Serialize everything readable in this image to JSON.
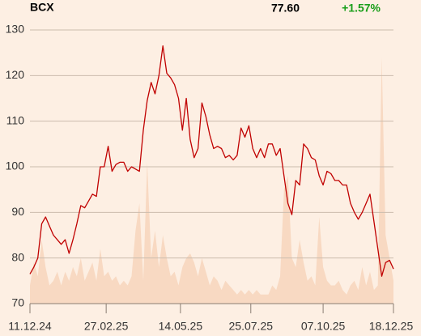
{
  "header": {
    "symbol": "BCX",
    "price": "77.60",
    "change": "+1.57%"
  },
  "chart_data": {
    "type": "line",
    "x": [
      "11.12.24",
      "15.12.24",
      "19.12.24",
      "23.12.24",
      "27.12.24",
      "31.12.24",
      "04.01.25",
      "08.01.25",
      "12.01.25",
      "16.01.25",
      "20.01.25",
      "24.01.25",
      "28.01.25",
      "01.02.25",
      "05.02.25",
      "09.02.25",
      "13.02.25",
      "17.02.25",
      "21.02.25",
      "25.02.25",
      "01.03.25",
      "05.03.25",
      "09.03.25",
      "13.03.25",
      "17.03.25",
      "21.03.25",
      "25.03.25",
      "29.03.25",
      "02.04.25",
      "06.04.25",
      "10.04.25",
      "14.04.25",
      "18.04.25",
      "22.04.25",
      "26.04.25",
      "30.04.25",
      "04.05.25",
      "08.05.25",
      "12.05.25",
      "16.05.25",
      "20.05.25",
      "24.05.25",
      "28.05.25",
      "01.06.25",
      "05.06.25",
      "09.06.25",
      "13.06.25",
      "17.06.25",
      "21.06.25",
      "25.06.25",
      "29.06.25",
      "03.07.25",
      "07.07.25",
      "11.07.25",
      "15.07.25",
      "19.07.25",
      "23.07.25",
      "27.07.25",
      "31.07.25",
      "04.08.25",
      "08.08.25",
      "12.08.25",
      "16.08.25",
      "20.08.25",
      "24.08.25",
      "28.08.25",
      "01.09.25",
      "05.09.25",
      "09.09.25",
      "13.09.25",
      "17.09.25",
      "21.09.25",
      "25.09.25",
      "29.09.25",
      "03.10.25",
      "07.10.25",
      "11.10.25",
      "15.10.25",
      "19.10.25",
      "23.10.25",
      "27.10.25",
      "31.10.25",
      "04.11.25",
      "08.11.25",
      "12.11.25",
      "16.11.25",
      "20.11.25",
      "24.11.25",
      "28.11.25",
      "02.12.25",
      "06.12.25",
      "10.12.25",
      "14.12.25",
      "18.12.25"
    ],
    "series": [
      {
        "color": "#c00000",
        "values": [
          76.5,
          78,
          80,
          87.5,
          89,
          87,
          85,
          84,
          83,
          84,
          81,
          84,
          87.5,
          91.5,
          91,
          92.5,
          94,
          93.5,
          100,
          100,
          104.5,
          99,
          100.5,
          101,
          101,
          99,
          100,
          99.5,
          99,
          108,
          114.5,
          118.5,
          116,
          120,
          126.5,
          120.5,
          119.5,
          118,
          115,
          108,
          115,
          106,
          102,
          104,
          114,
          111,
          107,
          104,
          104.5,
          104,
          102,
          102.5,
          101.5,
          102.5,
          108.5,
          106.5,
          109,
          104,
          102,
          104,
          102,
          105,
          105,
          102.5,
          104,
          98,
          92,
          89.5,
          97,
          96,
          105,
          104,
          102,
          101.5,
          98,
          96,
          99,
          98.5,
          97,
          97,
          96,
          96,
          92,
          90,
          88.5,
          90,
          92,
          94,
          88,
          82,
          76,
          79,
          79.5,
          77.6
        ]
      },
      {
        "type": "area",
        "color": "#f8d9c2",
        "values": [
          74,
          79,
          76,
          84,
          78,
          74,
          75,
          77,
          74,
          77,
          75,
          78,
          76,
          80,
          75,
          77,
          79,
          75,
          82,
          76,
          77,
          75,
          76,
          74,
          75,
          74,
          76,
          86,
          92,
          75,
          101,
          80,
          86,
          78,
          85,
          80,
          76,
          77,
          74,
          78,
          80,
          81,
          79,
          76,
          80,
          77,
          74,
          76,
          75,
          73,
          75,
          74,
          73,
          72,
          73,
          72,
          73,
          72,
          73,
          72,
          72,
          72,
          74,
          73,
          76,
          95,
          98,
          80,
          78,
          84,
          79,
          75,
          76,
          74,
          89,
          78,
          75,
          74,
          74,
          75,
          73,
          72,
          74,
          75,
          73,
          78,
          74,
          77,
          73,
          74,
          124,
          85,
          80,
          75
        ]
      }
    ],
    "xlim": [
      "11.12.24",
      "18.12.25"
    ],
    "xticks": [
      "11.12.24",
      "27.02.25",
      "14.05.25",
      "25.07.25",
      "07.10.25",
      "18.12.25"
    ],
    "ylim": [
      70,
      130
    ],
    "yticks": [
      70,
      80,
      90,
      100,
      110,
      120,
      130
    ],
    "grid": true
  }
}
